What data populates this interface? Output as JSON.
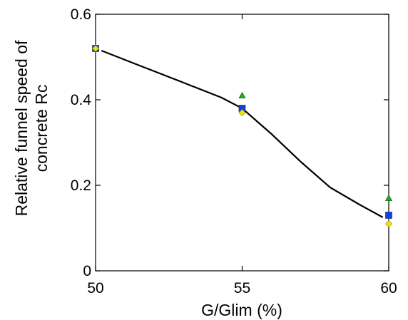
{
  "chart_data": {
    "type": "scatter",
    "xlabel": "G/Glim (%)",
    "ylabel": [
      "Relative funnel speed of",
      "concrete Rc"
    ],
    "xlim": [
      50,
      60
    ],
    "ylim": [
      0,
      0.6
    ],
    "x_ticks": [
      "50",
      "55",
      "60"
    ],
    "y_ticks": [
      "0",
      "0.2",
      "0.4",
      "0.6"
    ],
    "x_tick_values": [
      50,
      55,
      60
    ],
    "y_tick_values": [
      0,
      0.2,
      0.4,
      0.6
    ],
    "grid": false,
    "series": [
      {
        "marker": "triangle",
        "color": "#22aa22",
        "points": [
          [
            50,
            0.52
          ],
          [
            55,
            0.41
          ],
          [
            60,
            0.17
          ]
        ]
      },
      {
        "marker": "square",
        "color": "#1a3fd6",
        "points": [
          [
            50,
            0.52
          ],
          [
            55,
            0.38
          ],
          [
            60,
            0.13
          ]
        ]
      },
      {
        "marker": "diamond",
        "color": "#f2e600",
        "points": [
          [
            50,
            0.52
          ],
          [
            55,
            0.37
          ],
          [
            60,
            0.11
          ]
        ]
      }
    ],
    "curve": {
      "color": "#000000",
      "points": [
        [
          50.2,
          0.515
        ],
        [
          51.5,
          0.48
        ],
        [
          53,
          0.44
        ],
        [
          54.3,
          0.405
        ],
        [
          55,
          0.38
        ],
        [
          56,
          0.32
        ],
        [
          57,
          0.255
        ],
        [
          58,
          0.195
        ],
        [
          59,
          0.155
        ],
        [
          59.8,
          0.125
        ]
      ]
    }
  }
}
